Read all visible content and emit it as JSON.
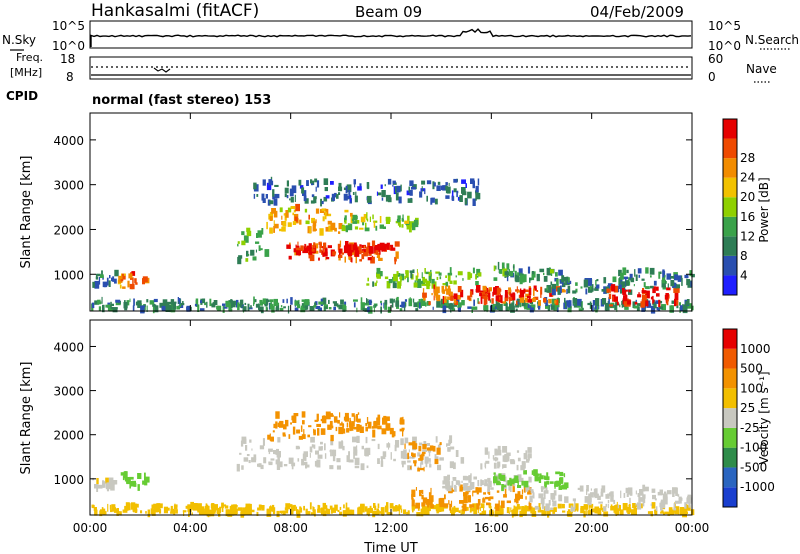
{
  "header": {
    "station": "Hankasalmi (fitACF)",
    "beam": "Beam 09",
    "date": "04/Feb/2009"
  },
  "status_panels": {
    "nsky_label": "N.Sky",
    "nsearch_label": "N.Search",
    "nsky_ticks": [
      "10^5",
      "10^0"
    ],
    "nsearch_ticks": [
      "10^5",
      "10^0"
    ],
    "freq_label_1": "Freq.",
    "freq_label_2": "[MHz]",
    "freq_ticks": [
      "18",
      "8"
    ],
    "nave_label": "Nave",
    "nave_ticks": [
      "60",
      "0"
    ],
    "cpid_label": "CPID",
    "cpid_text": "normal (fast stereo) 153"
  },
  "colors": {
    "power_scale": [
      "#1f1fff",
      "#2a4fb0",
      "#2e7d55",
      "#3aa24a",
      "#8fd000",
      "#f2c200",
      "#f28c00",
      "#ef4a00",
      "#e60000"
    ],
    "velocity_scale": [
      "#1a3fcf",
      "#2a65c0",
      "#2e8c4a",
      "#66cc33",
      "#c8c8c0",
      "#f2bf00",
      "#f39200",
      "#f05a00",
      "#e60000"
    ],
    "ground_scatter": "#c5c5bd"
  },
  "chart_data": [
    {
      "type": "heatmap",
      "parameter": "power",
      "ylabel": "Slant Range [km]",
      "yticks": [
        "1000",
        "2000",
        "3000",
        "4000"
      ],
      "ylim": [
        180,
        4600
      ],
      "colorbar_label": "Power [dB]",
      "colorbar_ticks": [
        "4",
        "8",
        "12",
        "16",
        "20",
        "24",
        "28"
      ],
      "colorbar_range": [
        0,
        30
      ],
      "xlim": [
        0,
        24
      ],
      "regions": [
        {
          "t": [
            0.0,
            1.0
          ],
          "r": [
            750,
            1050
          ],
          "v": 7
        },
        {
          "t": [
            1.1,
            2.2
          ],
          "r": [
            700,
            1050
          ],
          "v": 23
        },
        {
          "t": [
            0.0,
            24.0
          ],
          "r": [
            200,
            420
          ],
          "v": 9
        },
        {
          "t": [
            5.8,
            7.0
          ],
          "r": [
            1300,
            2000
          ],
          "v": 12
        },
        {
          "t": [
            7.0,
            10.5
          ],
          "r": [
            1900,
            2500
          ],
          "v": 20
        },
        {
          "t": [
            7.8,
            12.2
          ],
          "r": [
            1300,
            1700
          ],
          "v": 25
        },
        {
          "t": [
            8.0,
            12.0
          ],
          "r": [
            1450,
            1650
          ],
          "v": 28
        },
        {
          "t": [
            10.0,
            13.0
          ],
          "r": [
            2000,
            2300
          ],
          "v": 14
        },
        {
          "t": [
            11.0,
            15.5
          ],
          "r": [
            750,
            1100
          ],
          "v": 13
        },
        {
          "t": [
            13.0,
            18.8
          ],
          "r": [
            350,
            700
          ],
          "v": 24
        },
        {
          "t": [
            15.5,
            17.5
          ],
          "r": [
            400,
            650
          ],
          "v": 28
        },
        {
          "t": [
            16.0,
            19.0
          ],
          "r": [
            850,
            1200
          ],
          "v": 10
        },
        {
          "t": [
            18.0,
            21.5
          ],
          "r": [
            600,
            900
          ],
          "v": 8
        },
        {
          "t": [
            20.5,
            23.5
          ],
          "r": [
            300,
            700
          ],
          "v": 27
        },
        {
          "t": [
            21.0,
            24.0
          ],
          "r": [
            700,
            1100
          ],
          "v": 9
        },
        {
          "t": [
            6.5,
            15.5
          ],
          "r": [
            2600,
            3100
          ],
          "v": 6
        }
      ]
    },
    {
      "type": "heatmap",
      "parameter": "velocity",
      "ylabel": "Slant Range [km]",
      "yticks": [
        "1000",
        "2000",
        "3000",
        "4000"
      ],
      "ylim": [
        180,
        4600
      ],
      "xlabel": "Time UT",
      "xticks": [
        "00:00",
        "04:00",
        "08:00",
        "12:00",
        "16:00",
        "20:00",
        "00:00"
      ],
      "xlim": [
        0,
        24
      ],
      "colorbar_label": "Velocity [m s⁻¹]",
      "colorbar_ticks": [
        "1000",
        "500",
        "100",
        "25",
        "-25",
        "-100",
        "-500",
        "-1000"
      ],
      "regions": [
        {
          "t": [
            0.0,
            1.0
          ],
          "r": [
            750,
            1000
          ],
          "v": -10
        },
        {
          "t": [
            1.2,
            2.2
          ],
          "r": [
            800,
            1150
          ],
          "v": 60
        },
        {
          "t": [
            0.0,
            24.0
          ],
          "r": [
            200,
            400
          ],
          "v": -60
        },
        {
          "t": [
            5.8,
            14.8
          ],
          "r": [
            1250,
            1900
          ],
          "v": 0
        },
        {
          "t": [
            7.0,
            10.8
          ],
          "r": [
            1900,
            2500
          ],
          "v": -300
        },
        {
          "t": [
            10.0,
            12.5
          ],
          "r": [
            2000,
            2400
          ],
          "v": -300
        },
        {
          "t": [
            12.5,
            14.0
          ],
          "r": [
            1200,
            1800
          ],
          "v": -400
        },
        {
          "t": [
            12.8,
            17.5
          ],
          "r": [
            350,
            800
          ],
          "v": -250
        },
        {
          "t": [
            14.0,
            17.5
          ],
          "r": [
            750,
            1050
          ],
          "v": 0
        },
        {
          "t": [
            16.0,
            19.0
          ],
          "r": [
            800,
            1150
          ],
          "v": 60
        },
        {
          "t": [
            17.5,
            24.0
          ],
          "r": [
            300,
            800
          ],
          "v": 0
        },
        {
          "t": [
            15.5,
            17.5
          ],
          "r": [
            1250,
            1700
          ],
          "v": 0
        }
      ]
    }
  ]
}
